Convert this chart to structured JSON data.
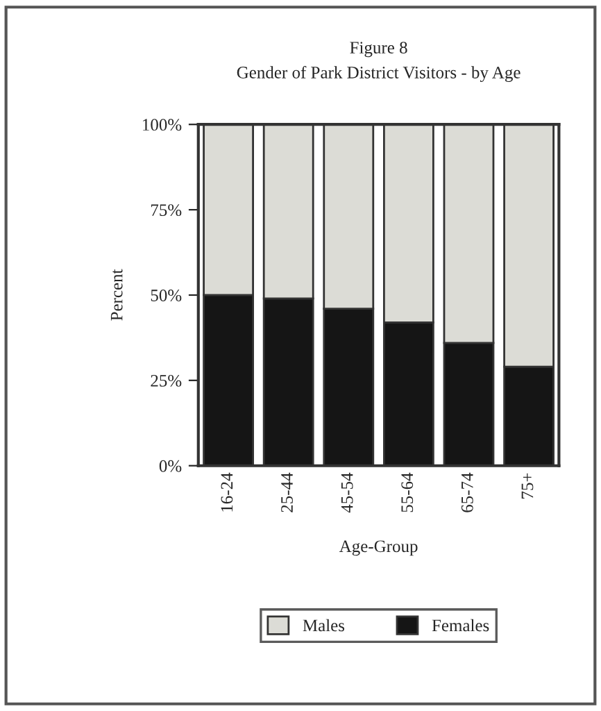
{
  "chart_data": {
    "type": "bar",
    "stacked": true,
    "title": "Figure 8",
    "subtitle": "Gender of Park District Visitors - by Age",
    "xlabel": "Age-Group",
    "ylabel": "Percent",
    "categories": [
      "16-24",
      "25-44",
      "45-54",
      "55-64",
      "65-74",
      "75+"
    ],
    "series": [
      {
        "name": "Females",
        "color": "#151515",
        "values": [
          50,
          49,
          46,
          42,
          36,
          29
        ]
      },
      {
        "name": "Males",
        "color": "#dcdcd6",
        "values": [
          50,
          51,
          54,
          58,
          64,
          71
        ]
      }
    ],
    "ylim": [
      0,
      100
    ],
    "yticks": [
      {
        "value": 0,
        "label": "0%"
      },
      {
        "value": 25,
        "label": "25%"
      },
      {
        "value": 50,
        "label": "50%"
      },
      {
        "value": 75,
        "label": "75%"
      },
      {
        "value": 100,
        "label": "100%"
      }
    ],
    "grid": false,
    "legend": "bottom"
  }
}
